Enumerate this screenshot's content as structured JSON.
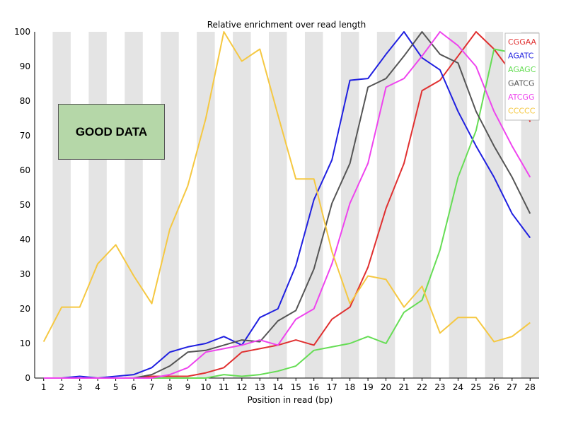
{
  "badge": {
    "text": "GOOD DATA",
    "color": "#b5d7a8"
  },
  "chart_data": {
    "type": "line",
    "title": "Relative enrichment over read length",
    "xlabel": "Position in read (bp)",
    "ylabel": "",
    "ylim": [
      0,
      100
    ],
    "yticks": [
      0,
      10,
      20,
      30,
      40,
      50,
      60,
      70,
      80,
      90,
      100
    ],
    "categories": [
      "1",
      "2",
      "3",
      "4",
      "5",
      "6",
      "7",
      "8",
      "9",
      "10",
      "11",
      "12",
      "13",
      "14",
      "15",
      "16",
      "17",
      "18",
      "19",
      "20",
      "21",
      "22",
      "23",
      "24",
      "25",
      "26",
      "27",
      "28"
    ],
    "grid": "alternating vertical bands",
    "legend_position": "top-right",
    "series": [
      {
        "name": "CGGAA",
        "color": "#e03030",
        "values": [
          0,
          0,
          0,
          0,
          0,
          0,
          0.5,
          0.5,
          0.5,
          1.5,
          3,
          7.5,
          8.5,
          9.5,
          11,
          9.5,
          17,
          20.5,
          32,
          49,
          62,
          83,
          86,
          93,
          100,
          95,
          88,
          74
        ]
      },
      {
        "name": "AGATC",
        "color": "#2020e0",
        "values": [
          0,
          0,
          0.5,
          0,
          0.5,
          1,
          3,
          7.5,
          9,
          10,
          12,
          9.5,
          17.5,
          20,
          32.5,
          51.5,
          63,
          86,
          86.5,
          93.5,
          100,
          92.5,
          89,
          77,
          67,
          58,
          47.5,
          40.5
        ]
      },
      {
        "name": "AGAGC",
        "color": "#66dd55",
        "values": [
          0,
          0,
          0,
          0,
          0,
          0,
          0,
          0,
          0,
          0,
          1,
          0.5,
          1,
          2,
          3.5,
          8,
          9,
          10,
          12,
          10,
          19,
          22.5,
          37,
          58,
          71.5,
          95,
          94,
          94
        ]
      },
      {
        "name": "GATCG",
        "color": "#555555",
        "values": [
          0,
          0,
          0,
          0,
          0,
          0,
          1,
          3.5,
          7.5,
          8,
          9.5,
          11,
          10.5,
          16.5,
          19.5,
          31.5,
          50.5,
          62,
          84,
          86.5,
          93,
          100,
          93.5,
          91,
          77,
          67,
          58,
          47.5
        ]
      },
      {
        "name": "ATCGG",
        "color": "#ee44ee",
        "values": [
          0,
          0,
          0,
          0,
          0,
          0,
          0,
          1,
          3,
          7.5,
          8.5,
          9.5,
          11,
          9.5,
          17,
          20,
          33,
          50.5,
          62,
          84,
          86.5,
          93,
          100,
          96,
          90,
          77,
          67,
          58
        ]
      },
      {
        "name": "CCCCC",
        "color": "#f5c842",
        "values": [
          10.5,
          20.5,
          20.5,
          33,
          38.5,
          29.5,
          21.5,
          43,
          55.5,
          75,
          100,
          91.5,
          95,
          76,
          57.5,
          57.5,
          36.5,
          21.5,
          29.5,
          28.5,
          20.5,
          26.5,
          13,
          17.5,
          17.5,
          10.5,
          12,
          16
        ]
      }
    ]
  }
}
